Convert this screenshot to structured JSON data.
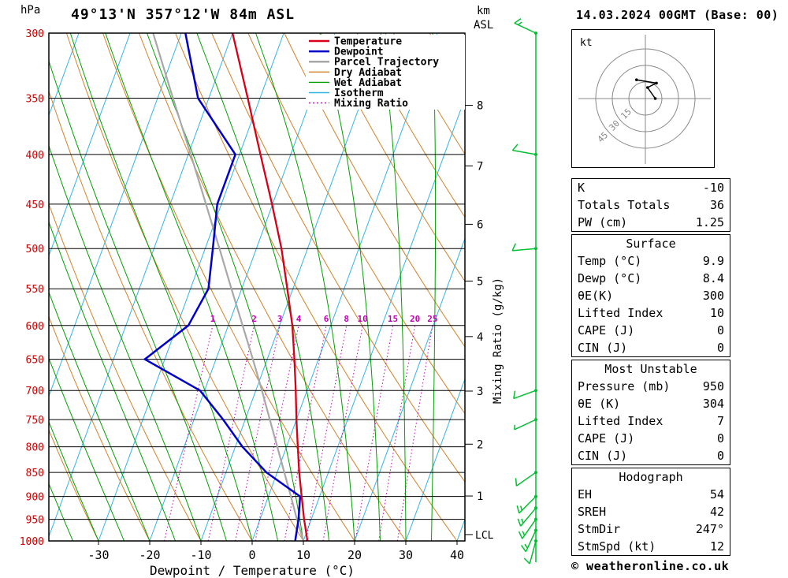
{
  "header": {
    "station": "49°13'N 357°12'W 84m ASL",
    "datetime": "14.03.2024 00GMT (Base: 00)"
  },
  "axes": {
    "pressure_unit": "hPa",
    "pressure_ticks": [
      300,
      350,
      400,
      450,
      500,
      550,
      600,
      650,
      700,
      750,
      800,
      850,
      900,
      950,
      1000
    ],
    "temp_ticks": [
      -30,
      -20,
      -10,
      0,
      10,
      20,
      30,
      40
    ],
    "xlabel": "Dewpoint / Temperature (°C)",
    "right_axis_title_1": "km",
    "right_axis_title_2": "ASL",
    "km_ticks": [
      {
        "km": 1,
        "p": 899
      },
      {
        "km": 2,
        "p": 795
      },
      {
        "km": 3,
        "p": 701
      },
      {
        "km": 4,
        "p": 616
      },
      {
        "km": 5,
        "p": 540
      },
      {
        "km": 6,
        "p": 472
      },
      {
        "km": 7,
        "p": 411
      },
      {
        "km": 8,
        "p": 356
      }
    ],
    "lcl_label": "LCL",
    "lcl_pressure": 985,
    "mixing_ratio_label": "Mixing Ratio (g/kg)"
  },
  "colors": {
    "temperature": "#d80018",
    "dewpoint": "#0000c8",
    "parcel": "#a8a8a8",
    "dry_adiabat": "#d2822a",
    "wet_adiabat": "#00a000",
    "isotherm": "#33b4e4",
    "mixing_ratio": "#c400b4",
    "wind": "#00c030",
    "pressure_labels": "#cc0000",
    "grid": "#000000",
    "hodograph_rings": "#888888"
  },
  "legend": {
    "items": [
      {
        "label": "Temperature",
        "color": "#d80018",
        "style": "solid",
        "width": 2.5
      },
      {
        "label": "Dewpoint",
        "color": "#0000c8",
        "style": "solid",
        "width": 2.5
      },
      {
        "label": "Parcel Trajectory",
        "color": "#a8a8a8",
        "style": "solid",
        "width": 2.5
      },
      {
        "label": "Dry Adiabat",
        "color": "#d2822a",
        "style": "solid",
        "width": 1.4
      },
      {
        "label": "Wet Adiabat",
        "color": "#00a000",
        "style": "solid",
        "width": 1.4
      },
      {
        "label": "Isotherm",
        "color": "#33b4e4",
        "style": "solid",
        "width": 1.4
      },
      {
        "label": "Mixing Ratio",
        "color": "#c400b4",
        "style": "dotted",
        "width": 1.4
      }
    ]
  },
  "chart_data": {
    "type": "skewt-log-p",
    "pressure_range": [
      300,
      1000
    ],
    "isotherm_step": 10,
    "dry_adiabat_step": 10,
    "wet_adiabat_step": 5,
    "mixing_ratio_lines": [
      1,
      2,
      3,
      4,
      6,
      8,
      10,
      15,
      20,
      25
    ],
    "sounding": {
      "pressure": [
        1000,
        950,
        900,
        850,
        800,
        750,
        700,
        650,
        600,
        550,
        500,
        450,
        400,
        350,
        300
      ],
      "temperature": [
        10.8,
        8.6,
        6.5,
        4.3,
        2.2,
        0.0,
        -2.2,
        -4.7,
        -7.5,
        -11.1,
        -15.1,
        -20.1,
        -25.9,
        -32.4,
        -40.0
      ],
      "dewpoint": [
        8.4,
        7.5,
        6.2,
        -2.1,
        -8.6,
        -14.3,
        -20.9,
        -33.9,
        -27.8,
        -26.5,
        -28.5,
        -30.8,
        -30.8,
        -42.1,
        -49.2
      ]
    },
    "parcel": {
      "pressure": [
        1000,
        950,
        900,
        850,
        800,
        750,
        700,
        650,
        600,
        550,
        500,
        450,
        400,
        350,
        300
      ],
      "temperature": [
        10.0,
        7.2,
        4.4,
        1.4,
        -1.8,
        -5.2,
        -8.8,
        -12.8,
        -17.2,
        -22.0,
        -27.2,
        -33.0,
        -39.5,
        -47.0,
        -55.5
      ]
    },
    "winds": [
      {
        "p": 1000,
        "dir": 195,
        "spd": 10
      },
      {
        "p": 975,
        "dir": 205,
        "spd": 15
      },
      {
        "p": 950,
        "dir": 215,
        "spd": 15
      },
      {
        "p": 925,
        "dir": 220,
        "spd": 15
      },
      {
        "p": 900,
        "dir": 225,
        "spd": 15
      },
      {
        "p": 850,
        "dir": 235,
        "spd": 10
      },
      {
        "p": 750,
        "dir": 245,
        "spd": 5
      },
      {
        "p": 700,
        "dir": 250,
        "spd": 10
      },
      {
        "p": 500,
        "dir": 265,
        "spd": 10
      },
      {
        "p": 400,
        "dir": 280,
        "spd": 10
      },
      {
        "p": 300,
        "dir": 295,
        "spd": 15
      }
    ],
    "hodograph": {
      "unit_label": "kt",
      "rings": [
        15,
        30,
        45
      ],
      "trace_uv_kt": [
        [
          -8,
          17
        ],
        [
          10,
          14
        ],
        [
          2,
          10
        ],
        [
          9,
          0
        ]
      ]
    }
  },
  "panel": {
    "tables": [
      {
        "rows": [
          [
            "K",
            "-10"
          ],
          [
            "Totals Totals",
            "36"
          ],
          [
            "PW (cm)",
            "1.25"
          ]
        ]
      },
      {
        "title": "Surface",
        "rows": [
          [
            "Temp (°C)",
            "9.9"
          ],
          [
            "Dewp (°C)",
            "8.4"
          ],
          [
            "θE(K)",
            "300"
          ],
          [
            "Lifted Index",
            "10"
          ],
          [
            "CAPE (J)",
            "0"
          ],
          [
            "CIN (J)",
            "0"
          ]
        ]
      },
      {
        "title": "Most Unstable",
        "rows": [
          [
            "Pressure (mb)",
            "950"
          ],
          [
            "θE (K)",
            "304"
          ],
          [
            "Lifted Index",
            "7"
          ],
          [
            "CAPE (J)",
            "0"
          ],
          [
            "CIN (J)",
            "0"
          ]
        ]
      },
      {
        "title": "Hodograph",
        "rows": [
          [
            "EH",
            "54"
          ],
          [
            "SREH",
            "42"
          ],
          [
            "StmDir",
            "247°"
          ],
          [
            "StmSpd (kt)",
            "12"
          ]
        ]
      }
    ]
  },
  "footer": {
    "copyright": "© weatheronline.co.uk"
  }
}
